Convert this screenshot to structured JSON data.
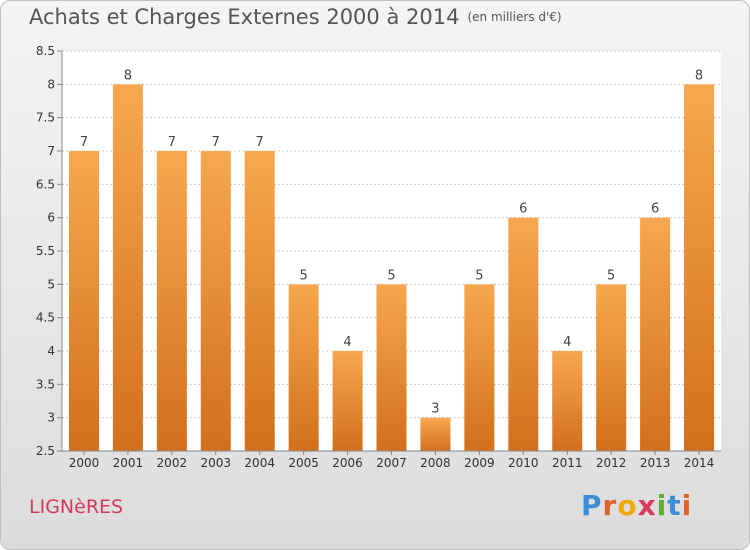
{
  "title": "Achats et Charges Externes 2000 à 2014",
  "unit": "(en milliers d'€)",
  "town": "LIGNèRES",
  "logo": {
    "letters": [
      "P",
      "r",
      "o",
      "x",
      "i",
      "t",
      "i"
    ],
    "colors": [
      "#3c8dd6",
      "#e0622b",
      "#f2a900",
      "#d63a5b",
      "#5fae2e",
      "#3c8dd6",
      "#e0622b"
    ]
  },
  "chart_data": {
    "type": "bar",
    "categories": [
      "2000",
      "2001",
      "2002",
      "2003",
      "2004",
      "2005",
      "2006",
      "2007",
      "2008",
      "2009",
      "2010",
      "2011",
      "2012",
      "2013",
      "2014"
    ],
    "values": [
      7,
      8,
      7,
      7,
      7,
      5,
      4,
      5,
      3,
      5,
      6,
      4,
      5,
      6,
      8
    ],
    "data_labels": [
      "7",
      "8",
      "7",
      "7",
      "7",
      "5",
      "4",
      "5",
      "3",
      "5",
      "6",
      "4",
      "5",
      "6",
      "8"
    ],
    "yticks": [
      "2.5",
      "3",
      "3.5",
      "4",
      "4.5",
      "5",
      "5.5",
      "6",
      "6.5",
      "7",
      "7.5",
      "8",
      "8.5"
    ],
    "ylim": [
      2.5,
      8.5
    ],
    "grid": true,
    "bar_color": "#f5a04a",
    "bar_color_dark": "#d9731e"
  }
}
